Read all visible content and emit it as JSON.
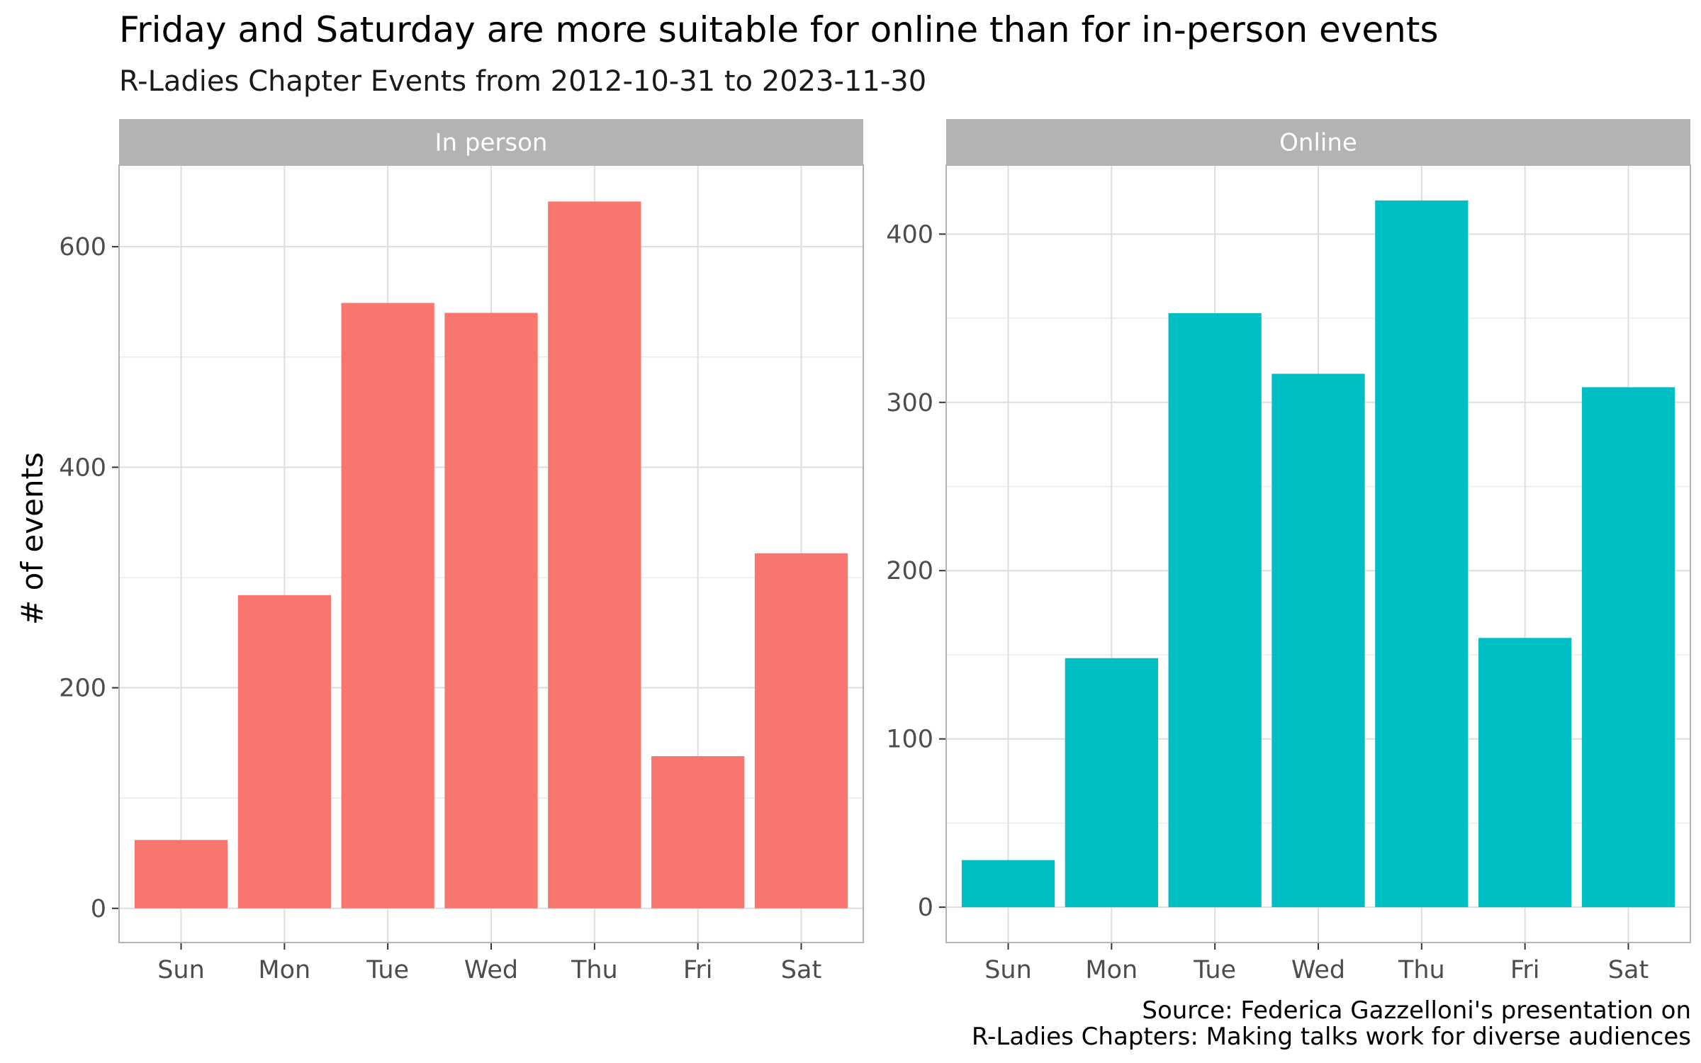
{
  "chart_data": {
    "type": "bar",
    "title": "Friday and Saturday are more suitable for online than for in-person events",
    "subtitle": "R-Ladies Chapter Events from 2012-10-31 to 2023-11-30",
    "ylabel": "# of events",
    "xlabel": "",
    "caption_lines": [
      "Source: Federica Gazzelloni's presentation on",
      "R-Ladies Chapters: Making talks work for diverse audiences"
    ],
    "categories": [
      "Sun",
      "Mon",
      "Tue",
      "Wed",
      "Thu",
      "Fri",
      "Sat"
    ],
    "grid": true,
    "legend": "none",
    "panels": [
      {
        "name": "In person",
        "color": "#F8766D",
        "values": [
          62,
          284,
          549,
          540,
          641,
          138,
          322
        ],
        "ylim": [
          -31,
          674
        ],
        "yticks": [
          0,
          200,
          400,
          600
        ]
      },
      {
        "name": "Online",
        "color": "#00BFC4",
        "values": [
          28,
          148,
          353,
          317,
          420,
          160,
          309
        ],
        "ylim": [
          -21,
          441
        ],
        "yticks": [
          0,
          100,
          200,
          300,
          400
        ]
      }
    ]
  }
}
